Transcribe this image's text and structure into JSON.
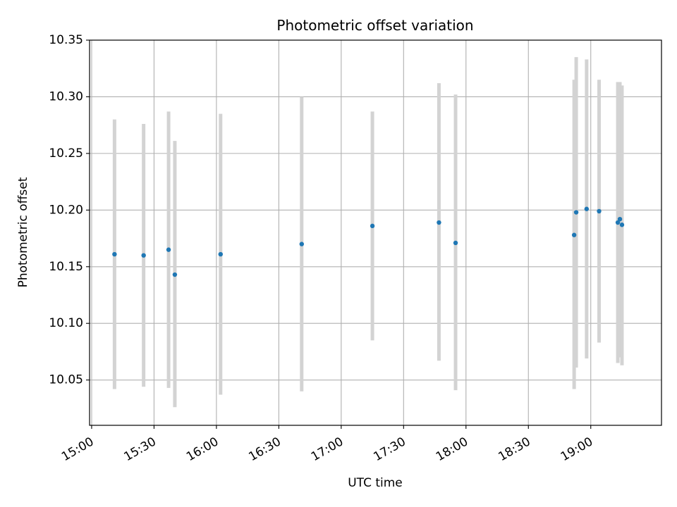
{
  "chart_data": {
    "type": "scatter",
    "title": "Photometric offset variation",
    "xlabel": "UTC time",
    "ylabel": "Photometric offset",
    "x_tick_labels": [
      "15:00",
      "15:30",
      "16:00",
      "16:30",
      "17:00",
      "17:30",
      "18:00",
      "18:30",
      "19:00"
    ],
    "y_tick_labels": [
      "10.05",
      "10.10",
      "10.15",
      "10.20",
      "10.25",
      "10.30",
      "10.35"
    ],
    "xlim": [
      "14:59",
      "19:34"
    ],
    "ylim": [
      10.01,
      10.35
    ],
    "grid": true,
    "colors": {
      "point": "#1f77b4",
      "errorbar": "#d3d3d3",
      "grid": "#b0b0b0"
    },
    "points": [
      {
        "x": "15:11",
        "y": 10.161,
        "err_low": 10.042,
        "err_high": 10.28
      },
      {
        "x": "15:25",
        "y": 10.16,
        "err_low": 10.044,
        "err_high": 10.276
      },
      {
        "x": "15:37",
        "y": 10.165,
        "err_low": 10.043,
        "err_high": 10.287
      },
      {
        "x": "15:40",
        "y": 10.143,
        "err_low": 10.026,
        "err_high": 10.261
      },
      {
        "x": "16:02",
        "y": 10.161,
        "err_low": 10.037,
        "err_high": 10.285
      },
      {
        "x": "16:41",
        "y": 10.17,
        "err_low": 10.04,
        "err_high": 10.3
      },
      {
        "x": "17:15",
        "y": 10.186,
        "err_low": 10.085,
        "err_high": 10.287
      },
      {
        "x": "17:47",
        "y": 10.189,
        "err_low": 10.067,
        "err_high": 10.312
      },
      {
        "x": "17:55",
        "y": 10.171,
        "err_low": 10.041,
        "err_high": 10.302
      },
      {
        "x": "18:52",
        "y": 10.178,
        "err_low": 10.042,
        "err_high": 10.315
      },
      {
        "x": "18:53",
        "y": 10.198,
        "err_low": 10.061,
        "err_high": 10.335
      },
      {
        "x": "18:58",
        "y": 10.201,
        "err_low": 10.069,
        "err_high": 10.333
      },
      {
        "x": "19:04",
        "y": 10.199,
        "err_low": 10.083,
        "err_high": 10.315
      },
      {
        "x": "19:13",
        "y": 10.189,
        "err_low": 10.065,
        "err_high": 10.313
      },
      {
        "x": "19:14",
        "y": 10.192,
        "err_low": 10.07,
        "err_high": 10.313
      },
      {
        "x": "19:15",
        "y": 10.187,
        "err_low": 10.063,
        "err_high": 10.31
      }
    ]
  }
}
